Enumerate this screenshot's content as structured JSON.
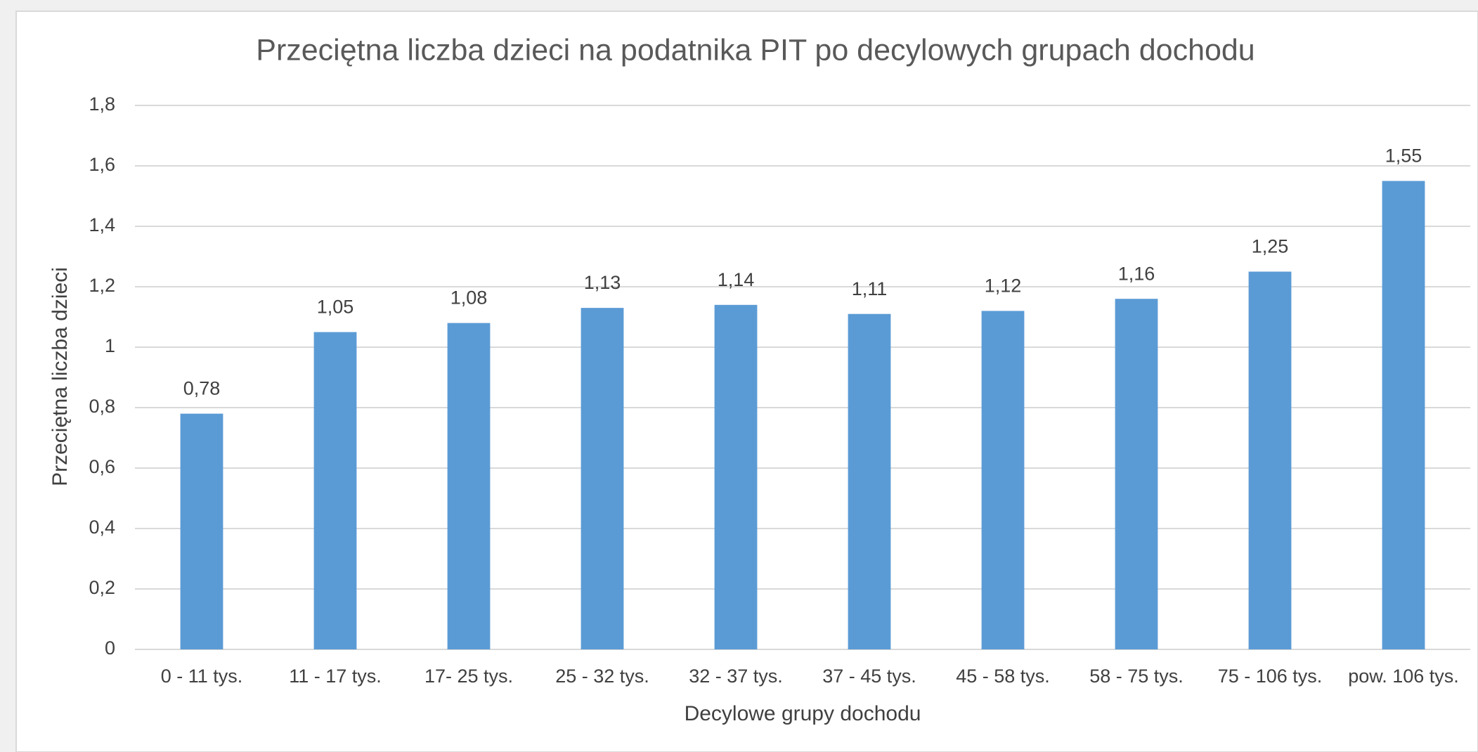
{
  "chart_data": {
    "type": "bar",
    "title": "Przeciętna liczba dzieci na podatnika PIT po decylowych grupach dochodu",
    "x_label": "Decylowe grupy dochodu",
    "y_label": "Przeciętna liczba dzieci",
    "categories": [
      "0 - 11 tys.",
      "11 - 17 tys.",
      "17- 25 tys.",
      "25 - 32 tys.",
      "32 - 37 tys.",
      "37 - 45 tys.",
      "45 - 58 tys.",
      "58 - 75 tys.",
      "75 - 106 tys.",
      "pow. 106 tys."
    ],
    "values": [
      0.78,
      1.05,
      1.08,
      1.13,
      1.14,
      1.11,
      1.12,
      1.16,
      1.25,
      1.55
    ],
    "value_labels": [
      "0,78",
      "1,05",
      "1,08",
      "1,13",
      "1,14",
      "1,11",
      "1,12",
      "1,16",
      "1,25",
      "1,55"
    ],
    "color": "#5b9bd5",
    "ylim": [
      0,
      1.8
    ],
    "yticks": [
      0,
      {
        "value": 0.2,
        "label": "0,2"
      },
      {
        "value": 0.4,
        "label": "0,4"
      },
      {
        "value": 0.6,
        "label": "0,6"
      },
      {
        "value": 0.8,
        "label": "0,8"
      },
      1,
      {
        "value": 1.2,
        "label": "1,2"
      },
      {
        "value": 1.4,
        "label": "1,4"
      },
      {
        "value": 1.6,
        "label": "1,6"
      },
      {
        "value": 1.8,
        "label": "1,8"
      }
    ],
    "grid": true
  }
}
